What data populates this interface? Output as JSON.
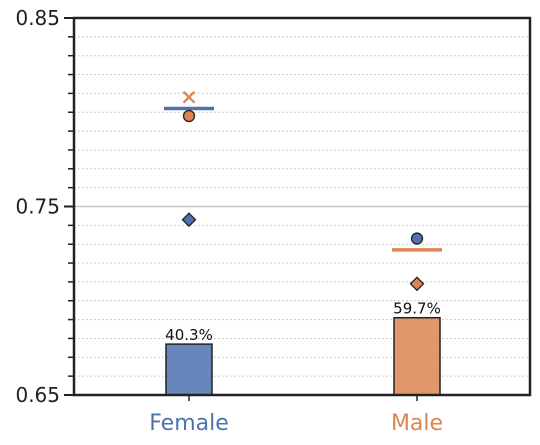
{
  "chart_data": {
    "type": "bar",
    "title": "",
    "xlabel": "",
    "ylabel": "",
    "ylim": [
      0.65,
      0.85
    ],
    "y_ticks": [
      "0.65",
      "0.75",
      "0.85"
    ],
    "categories": [
      "Female",
      "Male"
    ],
    "category_colors": [
      "#4c72b0",
      "#dd8452"
    ],
    "bars": {
      "values": [
        0.677,
        0.691
      ],
      "labels": [
        "40.3%",
        "59.7%"
      ]
    },
    "markers": {
      "dash": {
        "values": [
          0.802,
          0.727
        ],
        "colors": [
          "#4c72b0",
          "#dd8452"
        ]
      },
      "x": {
        "values": [
          0.808,
          null
        ],
        "colors": [
          "#dd8452",
          "#4c72b0"
        ]
      },
      "circle": {
        "values": [
          0.798,
          0.733
        ],
        "colors": [
          "#dd8452",
          "#4c72b0"
        ]
      },
      "diamond": {
        "values": [
          0.743,
          0.709
        ],
        "colors": [
          "#4c72b0",
          "#dd8452"
        ]
      }
    },
    "reference_line": 0.75,
    "grid": "horizontal-dotted"
  }
}
